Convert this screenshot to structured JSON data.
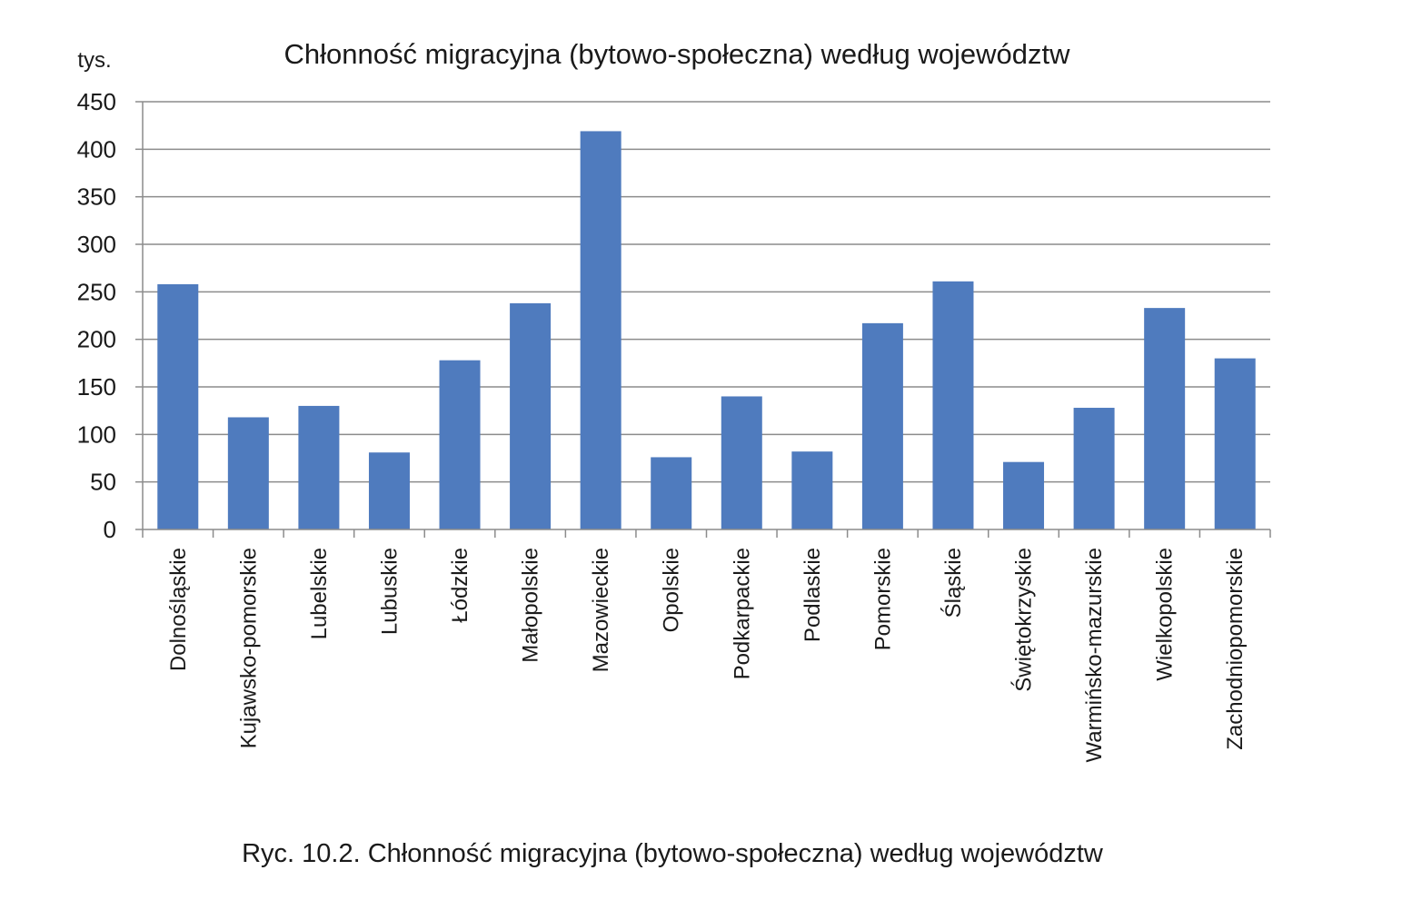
{
  "chart_data": {
    "type": "bar",
    "title": "Chłonność migracyjna (bytowo-społeczna) według województw",
    "ylabel": "tys.",
    "xlabel": "",
    "ylim": [
      0,
      450
    ],
    "yticks": [
      0,
      50,
      100,
      150,
      200,
      250,
      300,
      350,
      400,
      450
    ],
    "grid": true,
    "bar_color": "#4f7bbe",
    "categories": [
      "Dolnośląskie",
      "Kujawsko-pomorskie",
      "Lubelskie",
      "Lubuskie",
      "Łódzkie",
      "Małopolskie",
      "Mazowieckie",
      "Opolskie",
      "Podkarpackie",
      "Podlaskie",
      "Pomorskie",
      "Śląskie",
      "Świętokrzyskie",
      "Warmińsko-mazurskie",
      "Wielkopolskie",
      "Zachodniopomorskie"
    ],
    "values": [
      258,
      118,
      130,
      81,
      178,
      238,
      419,
      76,
      140,
      82,
      217,
      261,
      71,
      128,
      233,
      180
    ]
  },
  "caption": "Ryc. 10.2. Chłonność migracyjna (bytowo-społeczna) według województw"
}
